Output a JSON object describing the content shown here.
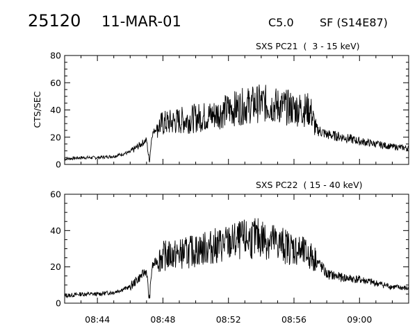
{
  "header": {
    "event_id": "25120",
    "date": "11-MAR-01",
    "goes_class": "C5.0",
    "flare_location": "SF (S14E87)"
  },
  "chart_data": [
    {
      "type": "line",
      "channel_label": "SXS PC21  (  3 - 15 keV)",
      "ylabel": "CTS/SEC",
      "xlabel": "",
      "ylim": [
        0,
        80
      ],
      "yticks": [
        0,
        20,
        40,
        60,
        80
      ],
      "xlim_minutes": [
        "08:42",
        "09:03"
      ],
      "xtick_labels": [
        "08:44",
        "08:48",
        "08:52",
        "08:56",
        "09:00"
      ],
      "series": [
        {
          "x_time": [
            "08:42",
            "08:43",
            "08:44",
            "08:45",
            "08:46",
            "08:47",
            "08:47:10",
            "08:47:20",
            "08:47:40",
            "08:48",
            "08:49",
            "08:50",
            "08:51",
            "08:52",
            "08:53",
            "08:54",
            "08:55",
            "08:56",
            "08:57",
            "08:57:20",
            "08:58",
            "08:59",
            "09:00",
            "09:01",
            "09:02",
            "09:03"
          ],
          "values": [
            4,
            5,
            5,
            6,
            9,
            18,
            2,
            22,
            28,
            30,
            32,
            34,
            36,
            40,
            43,
            45,
            43,
            41,
            40,
            26,
            22,
            20,
            17,
            15,
            13,
            12
          ]
        }
      ]
    },
    {
      "type": "line",
      "channel_label": "SXS PC22  ( 15 - 40 keV)",
      "ylabel": "",
      "xlabel": "",
      "ylim": [
        0,
        60
      ],
      "yticks": [
        0,
        20,
        40,
        60
      ],
      "xlim_minutes": [
        "08:42",
        "09:03"
      ],
      "xtick_labels": [
        "08:44",
        "08:48",
        "08:52",
        "08:56",
        "09:00"
      ],
      "series": [
        {
          "x_time": [
            "08:42",
            "08:43",
            "08:44",
            "08:45",
            "08:46",
            "08:47",
            "08:47:10",
            "08:47:20",
            "08:47:40",
            "08:48",
            "08:49",
            "08:50",
            "08:51",
            "08:52",
            "08:53",
            "08:54",
            "08:55",
            "08:56",
            "08:57",
            "08:57:20",
            "08:58",
            "08:59",
            "09:00",
            "09:01",
            "09:02",
            "09:03"
          ],
          "values": [
            4,
            5,
            5,
            6,
            9,
            18,
            1,
            20,
            24,
            26,
            27,
            29,
            31,
            33,
            35,
            36,
            33,
            30,
            26,
            24,
            16,
            14,
            13,
            11,
            9,
            8
          ]
        }
      ]
    }
  ]
}
